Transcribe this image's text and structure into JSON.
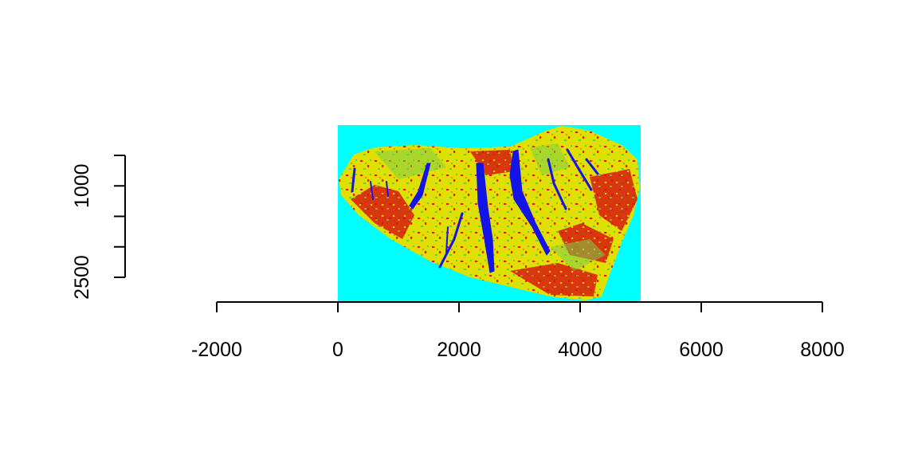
{
  "chart_data": {
    "type": "heatmap",
    "title": "",
    "xlabel": "",
    "ylabel": "",
    "xlim": [
      -2000,
      8000
    ],
    "x_ticks": [
      -2000,
      0,
      2000,
      4000,
      6000,
      8000
    ],
    "y_ticks_labeled": [
      1000,
      2500
    ],
    "y_ticks_all": [
      500,
      1000,
      1500,
      2000,
      2500
    ],
    "y_reversed": true,
    "raster_extent": {
      "x": [
        0,
        5000
      ],
      "y": [
        300,
        3200
      ]
    },
    "raster_classes": [
      {
        "color": "#00ffff"
      },
      {
        "color": "#0000ff"
      },
      {
        "color": "#ff0000"
      },
      {
        "color": "#e6e600"
      },
      {
        "color": "#66cc33"
      }
    ],
    "legend": "none",
    "grid": false,
    "colors": {
      "background": "#00ffff",
      "water": "#1414e6",
      "low": "#e61414",
      "mid": "#e6e600",
      "high": "#66cc33"
    }
  }
}
